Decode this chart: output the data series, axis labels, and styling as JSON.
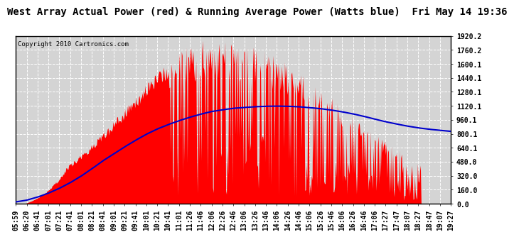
{
  "title": "West Array Actual Power (red) & Running Average Power (Watts blue)  Fri May 14 19:36",
  "copyright": "Copyright 2010 Cartronics.com",
  "ymin": 0.0,
  "ymax": 1920.2,
  "yticks": [
    0.0,
    160.0,
    320.0,
    480.0,
    640.1,
    800.1,
    960.1,
    1120.1,
    1280.1,
    1440.1,
    1600.1,
    1760.2,
    1920.2
  ],
  "ytick_labels": [
    "0.0",
    "160.0",
    "320.0",
    "480.0",
    "640.1",
    "800.1",
    "960.1",
    "1120.1",
    "1280.1",
    "1440.1",
    "1600.1",
    "1760.2",
    "1920.2"
  ],
  "bg_color": "#ffffff",
  "plot_bg_color": "#d4d4d4",
  "grid_color": "#ffffff",
  "actual_color": "#ff0000",
  "avg_color": "#0000cc",
  "title_fontsize": 10,
  "copyright_fontsize": 6.5,
  "tick_fontsize": 7,
  "x_labels": [
    "05:59",
    "06:20",
    "06:41",
    "07:01",
    "07:21",
    "07:41",
    "08:01",
    "08:21",
    "08:41",
    "09:01",
    "09:21",
    "09:41",
    "10:01",
    "10:21",
    "10:41",
    "11:01",
    "11:26",
    "11:46",
    "12:06",
    "12:26",
    "12:46",
    "13:06",
    "13:26",
    "13:46",
    "14:06",
    "14:26",
    "14:46",
    "15:06",
    "15:26",
    "15:46",
    "16:06",
    "16:26",
    "16:46",
    "17:06",
    "17:27",
    "17:47",
    "18:07",
    "18:27",
    "18:47",
    "19:07",
    "19:27"
  ],
  "blue_vals": [
    20,
    40,
    75,
    120,
    175,
    240,
    315,
    400,
    490,
    570,
    650,
    725,
    795,
    855,
    905,
    950,
    990,
    1025,
    1055,
    1075,
    1092,
    1102,
    1110,
    1115,
    1117,
    1115,
    1110,
    1100,
    1088,
    1072,
    1052,
    1028,
    1000,
    968,
    938,
    912,
    888,
    868,
    852,
    840,
    828
  ]
}
